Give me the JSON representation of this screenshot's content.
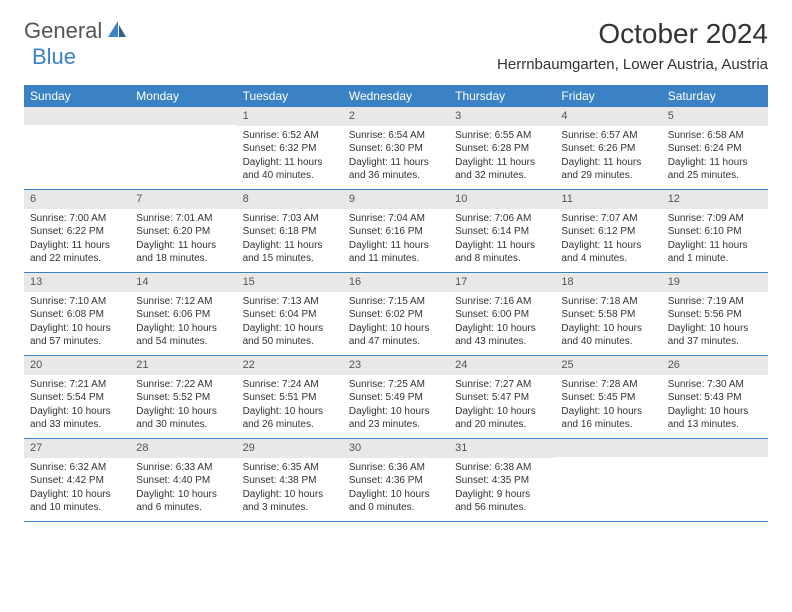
{
  "brand": {
    "part1": "General",
    "part2": "Blue"
  },
  "title": "October 2024",
  "location": "Herrnbaumgarten, Lower Austria, Austria",
  "colors": {
    "accent": "#3b82c4",
    "header_bg": "#3b82c4",
    "day_num_bg": "#e8e8e8"
  },
  "weekdays": [
    "Sunday",
    "Monday",
    "Tuesday",
    "Wednesday",
    "Thursday",
    "Friday",
    "Saturday"
  ],
  "weeks": [
    [
      null,
      null,
      {
        "num": "1",
        "sunrise": "Sunrise: 6:52 AM",
        "sunset": "Sunset: 6:32 PM",
        "daylight": "Daylight: 11 hours and 40 minutes."
      },
      {
        "num": "2",
        "sunrise": "Sunrise: 6:54 AM",
        "sunset": "Sunset: 6:30 PM",
        "daylight": "Daylight: 11 hours and 36 minutes."
      },
      {
        "num": "3",
        "sunrise": "Sunrise: 6:55 AM",
        "sunset": "Sunset: 6:28 PM",
        "daylight": "Daylight: 11 hours and 32 minutes."
      },
      {
        "num": "4",
        "sunrise": "Sunrise: 6:57 AM",
        "sunset": "Sunset: 6:26 PM",
        "daylight": "Daylight: 11 hours and 29 minutes."
      },
      {
        "num": "5",
        "sunrise": "Sunrise: 6:58 AM",
        "sunset": "Sunset: 6:24 PM",
        "daylight": "Daylight: 11 hours and 25 minutes."
      }
    ],
    [
      {
        "num": "6",
        "sunrise": "Sunrise: 7:00 AM",
        "sunset": "Sunset: 6:22 PM",
        "daylight": "Daylight: 11 hours and 22 minutes."
      },
      {
        "num": "7",
        "sunrise": "Sunrise: 7:01 AM",
        "sunset": "Sunset: 6:20 PM",
        "daylight": "Daylight: 11 hours and 18 minutes."
      },
      {
        "num": "8",
        "sunrise": "Sunrise: 7:03 AM",
        "sunset": "Sunset: 6:18 PM",
        "daylight": "Daylight: 11 hours and 15 minutes."
      },
      {
        "num": "9",
        "sunrise": "Sunrise: 7:04 AM",
        "sunset": "Sunset: 6:16 PM",
        "daylight": "Daylight: 11 hours and 11 minutes."
      },
      {
        "num": "10",
        "sunrise": "Sunrise: 7:06 AM",
        "sunset": "Sunset: 6:14 PM",
        "daylight": "Daylight: 11 hours and 8 minutes."
      },
      {
        "num": "11",
        "sunrise": "Sunrise: 7:07 AM",
        "sunset": "Sunset: 6:12 PM",
        "daylight": "Daylight: 11 hours and 4 minutes."
      },
      {
        "num": "12",
        "sunrise": "Sunrise: 7:09 AM",
        "sunset": "Sunset: 6:10 PM",
        "daylight": "Daylight: 11 hours and 1 minute."
      }
    ],
    [
      {
        "num": "13",
        "sunrise": "Sunrise: 7:10 AM",
        "sunset": "Sunset: 6:08 PM",
        "daylight": "Daylight: 10 hours and 57 minutes."
      },
      {
        "num": "14",
        "sunrise": "Sunrise: 7:12 AM",
        "sunset": "Sunset: 6:06 PM",
        "daylight": "Daylight: 10 hours and 54 minutes."
      },
      {
        "num": "15",
        "sunrise": "Sunrise: 7:13 AM",
        "sunset": "Sunset: 6:04 PM",
        "daylight": "Daylight: 10 hours and 50 minutes."
      },
      {
        "num": "16",
        "sunrise": "Sunrise: 7:15 AM",
        "sunset": "Sunset: 6:02 PM",
        "daylight": "Daylight: 10 hours and 47 minutes."
      },
      {
        "num": "17",
        "sunrise": "Sunrise: 7:16 AM",
        "sunset": "Sunset: 6:00 PM",
        "daylight": "Daylight: 10 hours and 43 minutes."
      },
      {
        "num": "18",
        "sunrise": "Sunrise: 7:18 AM",
        "sunset": "Sunset: 5:58 PM",
        "daylight": "Daylight: 10 hours and 40 minutes."
      },
      {
        "num": "19",
        "sunrise": "Sunrise: 7:19 AM",
        "sunset": "Sunset: 5:56 PM",
        "daylight": "Daylight: 10 hours and 37 minutes."
      }
    ],
    [
      {
        "num": "20",
        "sunrise": "Sunrise: 7:21 AM",
        "sunset": "Sunset: 5:54 PM",
        "daylight": "Daylight: 10 hours and 33 minutes."
      },
      {
        "num": "21",
        "sunrise": "Sunrise: 7:22 AM",
        "sunset": "Sunset: 5:52 PM",
        "daylight": "Daylight: 10 hours and 30 minutes."
      },
      {
        "num": "22",
        "sunrise": "Sunrise: 7:24 AM",
        "sunset": "Sunset: 5:51 PM",
        "daylight": "Daylight: 10 hours and 26 minutes."
      },
      {
        "num": "23",
        "sunrise": "Sunrise: 7:25 AM",
        "sunset": "Sunset: 5:49 PM",
        "daylight": "Daylight: 10 hours and 23 minutes."
      },
      {
        "num": "24",
        "sunrise": "Sunrise: 7:27 AM",
        "sunset": "Sunset: 5:47 PM",
        "daylight": "Daylight: 10 hours and 20 minutes."
      },
      {
        "num": "25",
        "sunrise": "Sunrise: 7:28 AM",
        "sunset": "Sunset: 5:45 PM",
        "daylight": "Daylight: 10 hours and 16 minutes."
      },
      {
        "num": "26",
        "sunrise": "Sunrise: 7:30 AM",
        "sunset": "Sunset: 5:43 PM",
        "daylight": "Daylight: 10 hours and 13 minutes."
      }
    ],
    [
      {
        "num": "27",
        "sunrise": "Sunrise: 6:32 AM",
        "sunset": "Sunset: 4:42 PM",
        "daylight": "Daylight: 10 hours and 10 minutes."
      },
      {
        "num": "28",
        "sunrise": "Sunrise: 6:33 AM",
        "sunset": "Sunset: 4:40 PM",
        "daylight": "Daylight: 10 hours and 6 minutes."
      },
      {
        "num": "29",
        "sunrise": "Sunrise: 6:35 AM",
        "sunset": "Sunset: 4:38 PM",
        "daylight": "Daylight: 10 hours and 3 minutes."
      },
      {
        "num": "30",
        "sunrise": "Sunrise: 6:36 AM",
        "sunset": "Sunset: 4:36 PM",
        "daylight": "Daylight: 10 hours and 0 minutes."
      },
      {
        "num": "31",
        "sunrise": "Sunrise: 6:38 AM",
        "sunset": "Sunset: 4:35 PM",
        "daylight": "Daylight: 9 hours and 56 minutes."
      },
      null,
      null
    ]
  ]
}
